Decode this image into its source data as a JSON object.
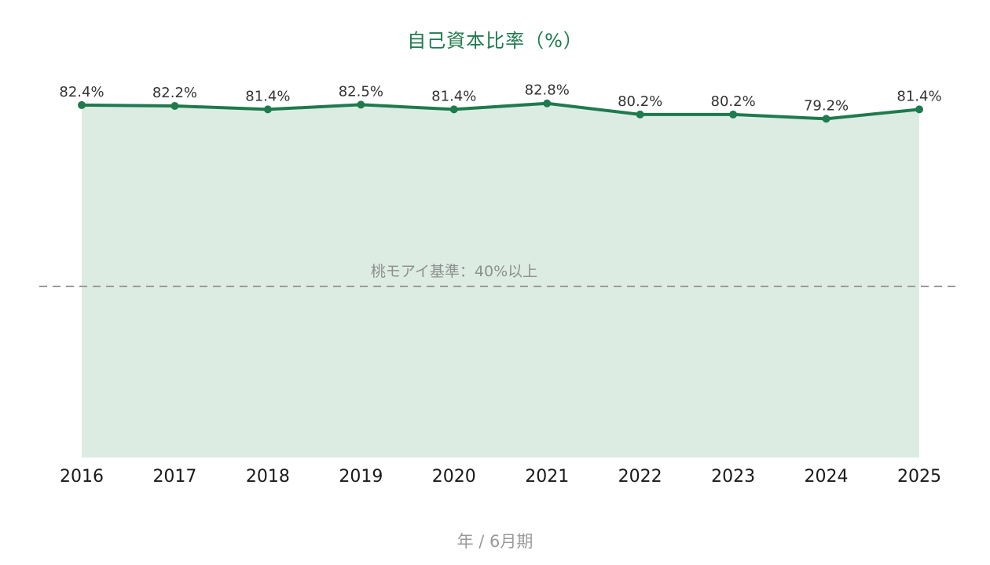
{
  "colors": {
    "accent": "#1f7a4d",
    "area_fill": "#dcece3",
    "threshold_line": "#9a9a9a",
    "threshold_text": "#8f8f8f",
    "value_label": "#333333",
    "tick_label": "#1a1a1a",
    "axis_label": "#999999"
  },
  "chart_data": {
    "type": "area",
    "title": "自己資本比率（%）",
    "xlabel": "年 / 6月期",
    "ylabel": "",
    "x": [
      "2016",
      "2017",
      "2018",
      "2019",
      "2020",
      "2021",
      "2022",
      "2023",
      "2024",
      "2025"
    ],
    "series": [
      {
        "values": [
          82.4,
          82.2,
          81.4,
          82.5,
          81.4,
          82.8,
          80.2,
          80.2,
          79.2,
          81.4
        ],
        "labels": [
          "82.4%",
          "82.2%",
          "81.4%",
          "82.5%",
          "81.4%",
          "82.8%",
          "80.2%",
          "80.2%",
          "79.2%",
          "81.4%"
        ]
      }
    ],
    "ylim": [
      0,
      100
    ],
    "grid": false,
    "legend": "none",
    "reference_line": {
      "value": 40,
      "label": "桃モアイ基準：40%以上",
      "style": "dashed"
    }
  }
}
